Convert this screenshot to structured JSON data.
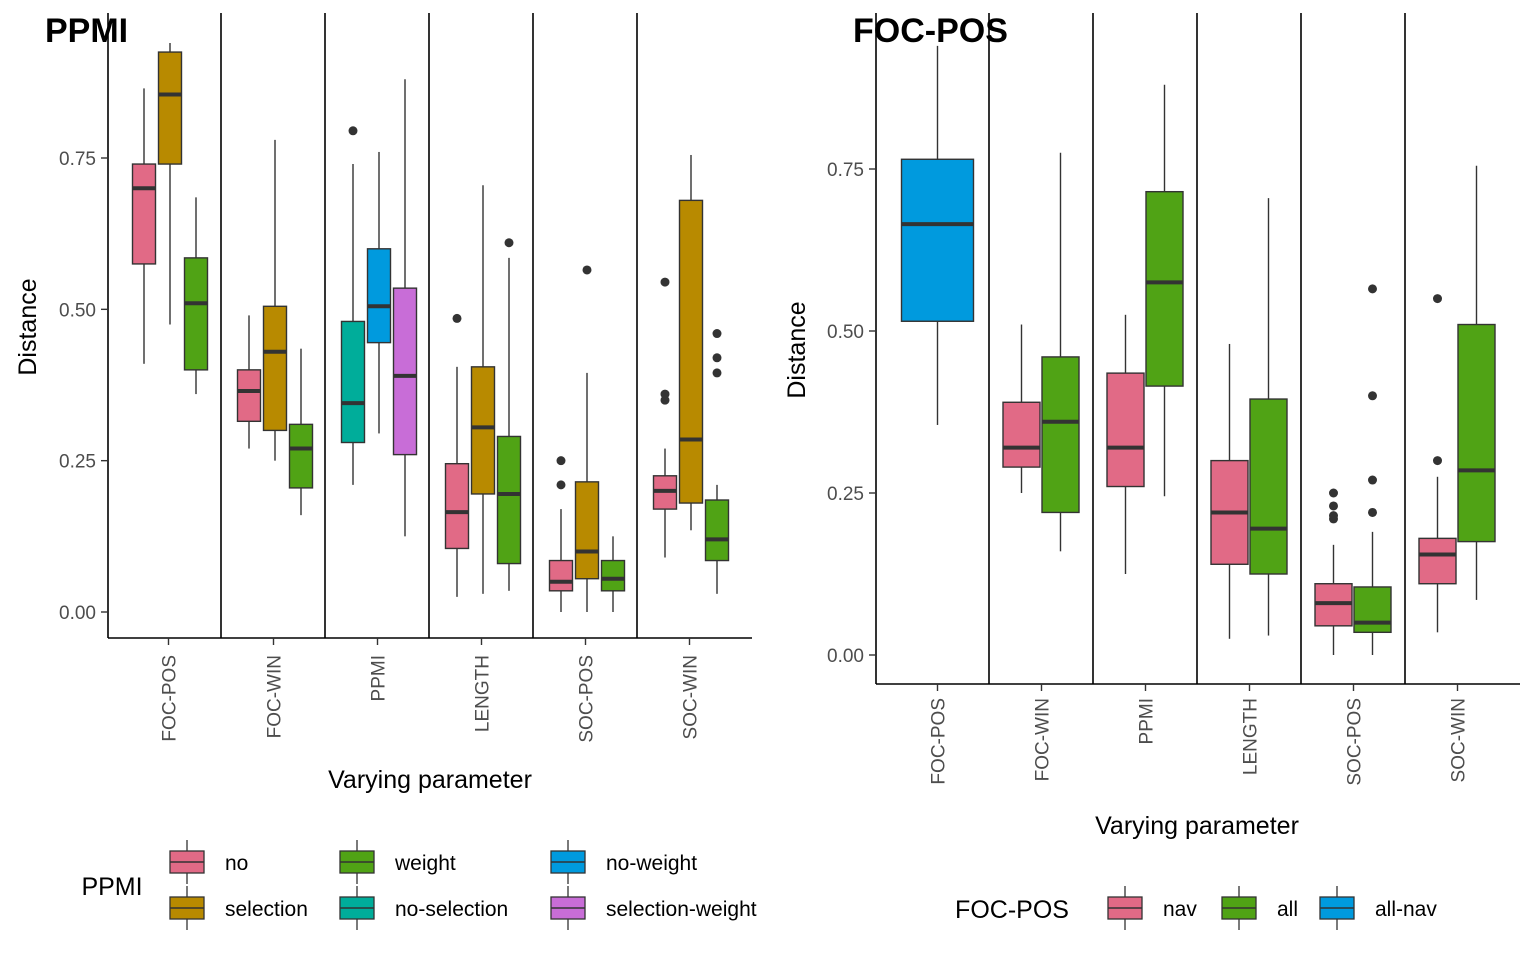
{
  "chart_data": [
    {
      "type": "boxplot",
      "title": "PPMI",
      "xlabel": "Varying parameter",
      "ylabel": "Distance",
      "ylim": [
        -0.045,
        0.945
      ],
      "yticks": [
        0,
        0.25,
        0.5,
        0.75
      ],
      "ytick_labels": [
        "0.00",
        "0.25",
        "0.50",
        "0.75"
      ],
      "grid": false,
      "facets": [
        "FOC-POS",
        "FOC-WIN",
        "PPMI",
        "LENGTH",
        "SOC-POS",
        "SOC-WIN"
      ],
      "legend": {
        "title": "PPMI",
        "position": "bottom",
        "entries": [
          {
            "label": "no",
            "color": "#E16A86"
          },
          {
            "label": "selection",
            "color": "#B88A00"
          },
          {
            "label": "weight",
            "color": "#50A315"
          },
          {
            "label": "no-selection",
            "color": "#00AD9A"
          },
          {
            "label": "no-weight",
            "color": "#009ADE"
          },
          {
            "label": "selection-weight",
            "color": "#C86DD7"
          }
        ]
      },
      "boxes": [
        {
          "facet": "FOC-POS",
          "group": "no",
          "position": 0,
          "n": 3,
          "min": 0.41,
          "q1": 0.575,
          "median": 0.7,
          "q3": 0.74,
          "max": 0.865,
          "outliers": []
        },
        {
          "facet": "FOC-POS",
          "group": "selection",
          "position": 1,
          "n": 3,
          "min": 0.475,
          "q1": 0.74,
          "median": 0.855,
          "q3": 0.925,
          "max": 0.94,
          "outliers": []
        },
        {
          "facet": "FOC-POS",
          "group": "weight",
          "position": 2,
          "n": 3,
          "min": 0.36,
          "q1": 0.4,
          "median": 0.51,
          "q3": 0.585,
          "max": 0.685,
          "outliers": []
        },
        {
          "facet": "FOC-WIN",
          "group": "no",
          "position": 0,
          "n": 3,
          "min": 0.27,
          "q1": 0.315,
          "median": 0.365,
          "q3": 0.4,
          "max": 0.49,
          "outliers": []
        },
        {
          "facet": "FOC-WIN",
          "group": "selection",
          "position": 1,
          "n": 3,
          "min": 0.25,
          "q1": 0.3,
          "median": 0.43,
          "q3": 0.505,
          "max": 0.78,
          "outliers": []
        },
        {
          "facet": "FOC-WIN",
          "group": "weight",
          "position": 2,
          "n": 3,
          "min": 0.16,
          "q1": 0.205,
          "median": 0.27,
          "q3": 0.31,
          "max": 0.435,
          "outliers": []
        },
        {
          "facet": "PPMI",
          "group": "no-selection",
          "position": 0,
          "n": 3,
          "min": 0.21,
          "q1": 0.28,
          "median": 0.345,
          "q3": 0.48,
          "max": 0.74,
          "outliers": [
            0.795
          ]
        },
        {
          "facet": "PPMI",
          "group": "no-weight",
          "position": 1,
          "n": 3,
          "min": 0.295,
          "q1": 0.445,
          "median": 0.505,
          "q3": 0.6,
          "max": 0.76,
          "outliers": []
        },
        {
          "facet": "PPMI",
          "group": "selection-weight",
          "position": 2,
          "n": 3,
          "min": 0.125,
          "q1": 0.26,
          "median": 0.39,
          "q3": 0.535,
          "max": 0.88,
          "outliers": []
        },
        {
          "facet": "LENGTH",
          "group": "no",
          "position": 0,
          "n": 3,
          "min": 0.025,
          "q1": 0.105,
          "median": 0.165,
          "q3": 0.245,
          "max": 0.405,
          "outliers": [
            0.485
          ]
        },
        {
          "facet": "LENGTH",
          "group": "selection",
          "position": 1,
          "n": 3,
          "min": 0.03,
          "q1": 0.195,
          "median": 0.305,
          "q3": 0.405,
          "max": 0.705,
          "outliers": []
        },
        {
          "facet": "LENGTH",
          "group": "weight",
          "position": 2,
          "n": 3,
          "min": 0.035,
          "q1": 0.08,
          "median": 0.195,
          "q3": 0.29,
          "max": 0.585,
          "outliers": [
            0.61
          ]
        },
        {
          "facet": "SOC-POS",
          "group": "no",
          "position": 0,
          "n": 3,
          "min": 0.0,
          "q1": 0.035,
          "median": 0.05,
          "q3": 0.085,
          "max": 0.17,
          "outliers": [
            0.21,
            0.25
          ]
        },
        {
          "facet": "SOC-POS",
          "group": "selection",
          "position": 1,
          "n": 3,
          "min": 0.0,
          "q1": 0.055,
          "median": 0.1,
          "q3": 0.215,
          "max": 0.395,
          "outliers": [
            0.565
          ]
        },
        {
          "facet": "SOC-POS",
          "group": "weight",
          "position": 2,
          "n": 3,
          "min": 0.0,
          "q1": 0.035,
          "median": 0.055,
          "q3": 0.085,
          "max": 0.125,
          "outliers": []
        },
        {
          "facet": "SOC-WIN",
          "group": "no",
          "position": 0,
          "n": 3,
          "min": 0.09,
          "q1": 0.17,
          "median": 0.2,
          "q3": 0.225,
          "max": 0.27,
          "outliers": [
            0.35,
            0.36,
            0.545
          ]
        },
        {
          "facet": "SOC-WIN",
          "group": "selection",
          "position": 1,
          "n": 3,
          "min": 0.135,
          "q1": 0.18,
          "median": 0.285,
          "q3": 0.68,
          "max": 0.755,
          "outliers": []
        },
        {
          "facet": "SOC-WIN",
          "group": "weight",
          "position": 2,
          "n": 3,
          "min": 0.03,
          "q1": 0.085,
          "median": 0.12,
          "q3": 0.185,
          "max": 0.21,
          "outliers": [
            0.395,
            0.42,
            0.46
          ]
        }
      ]
    },
    {
      "type": "boxplot",
      "title": "FOC-POS",
      "xlabel": "Varying parameter",
      "ylabel": "Distance",
      "ylim": [
        -0.045,
        0.945
      ],
      "yticks": [
        0,
        0.25,
        0.5,
        0.75
      ],
      "ytick_labels": [
        "0.00",
        "0.25",
        "0.50",
        "0.75"
      ],
      "grid": false,
      "facets": [
        "FOC-POS",
        "FOC-WIN",
        "PPMI",
        "LENGTH",
        "SOC-POS",
        "SOC-WIN"
      ],
      "legend": {
        "title": "FOC-POS",
        "position": "bottom",
        "entries": [
          {
            "label": "nav",
            "color": "#E16A86"
          },
          {
            "label": "all",
            "color": "#50A315"
          },
          {
            "label": "all-nav",
            "color": "#009ADE"
          }
        ]
      },
      "boxes": [
        {
          "facet": "FOC-POS",
          "group": "all-nav",
          "position": 0,
          "n": 1,
          "min": 0.355,
          "q1": 0.515,
          "median": 0.665,
          "q3": 0.765,
          "max": 0.94,
          "outliers": []
        },
        {
          "facet": "FOC-WIN",
          "group": "nav",
          "position": 0,
          "n": 2,
          "min": 0.25,
          "q1": 0.29,
          "median": 0.32,
          "q3": 0.39,
          "max": 0.51,
          "outliers": []
        },
        {
          "facet": "FOC-WIN",
          "group": "all",
          "position": 1,
          "n": 2,
          "min": 0.16,
          "q1": 0.22,
          "median": 0.36,
          "q3": 0.46,
          "max": 0.775,
          "outliers": []
        },
        {
          "facet": "PPMI",
          "group": "nav",
          "position": 0,
          "n": 2,
          "min": 0.125,
          "q1": 0.26,
          "median": 0.32,
          "q3": 0.435,
          "max": 0.525,
          "outliers": []
        },
        {
          "facet": "PPMI",
          "group": "all",
          "position": 1,
          "n": 2,
          "min": 0.245,
          "q1": 0.415,
          "median": 0.575,
          "q3": 0.715,
          "max": 0.88,
          "outliers": []
        },
        {
          "facet": "LENGTH",
          "group": "nav",
          "position": 0,
          "n": 2,
          "min": 0.025,
          "q1": 0.14,
          "median": 0.22,
          "q3": 0.3,
          "max": 0.48,
          "outliers": []
        },
        {
          "facet": "LENGTH",
          "group": "all",
          "position": 1,
          "n": 2,
          "min": 0.03,
          "q1": 0.125,
          "median": 0.195,
          "q3": 0.395,
          "max": 0.705,
          "outliers": []
        },
        {
          "facet": "SOC-POS",
          "group": "nav",
          "position": 0,
          "n": 2,
          "min": 0.0,
          "q1": 0.045,
          "median": 0.08,
          "q3": 0.11,
          "max": 0.17,
          "outliers": [
            0.21,
            0.215,
            0.23,
            0.25
          ]
        },
        {
          "facet": "SOC-POS",
          "group": "all",
          "position": 1,
          "n": 2,
          "min": 0.0,
          "q1": 0.035,
          "median": 0.05,
          "q3": 0.105,
          "max": 0.19,
          "outliers": [
            0.22,
            0.27,
            0.4,
            0.565
          ]
        },
        {
          "facet": "SOC-WIN",
          "group": "nav",
          "position": 0,
          "n": 2,
          "min": 0.035,
          "q1": 0.11,
          "median": 0.155,
          "q3": 0.18,
          "max": 0.275,
          "outliers": [
            0.3,
            0.55
          ]
        },
        {
          "facet": "SOC-WIN",
          "group": "all",
          "position": 1,
          "n": 2,
          "min": 0.085,
          "q1": 0.175,
          "median": 0.285,
          "q3": 0.51,
          "max": 0.755,
          "outliers": []
        }
      ]
    }
  ]
}
